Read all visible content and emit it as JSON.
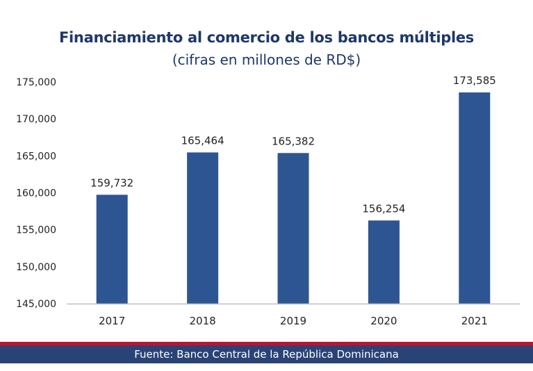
{
  "chart_data": {
    "type": "bar",
    "title": "Financiamiento al comercio de los bancos múltiples",
    "subtitle": "(cifras en millones de RD$)",
    "categories": [
      "2017",
      "2018",
      "2019",
      "2020",
      "2021"
    ],
    "values": [
      159732,
      165464,
      165382,
      156254,
      173585
    ],
    "value_labels": [
      "159,732",
      "165,464",
      "165,382",
      "156,254",
      "173,585"
    ],
    "xlabel": "",
    "ylabel": "",
    "ylim": [
      145000,
      175000
    ],
    "yticks": [
      145000,
      150000,
      155000,
      160000,
      165000,
      170000,
      175000
    ],
    "ytick_labels": [
      "145,000",
      "150,000",
      "155,000",
      "160,000",
      "165,000",
      "170,000",
      "175,000"
    ],
    "grid": false,
    "legend": "none",
    "bar_color": "#2d5591"
  },
  "footer": {
    "source": "Fuente: Banco Central de la República Dominicana",
    "accent_color": "#c8102e",
    "band_color": "#2a4377"
  }
}
